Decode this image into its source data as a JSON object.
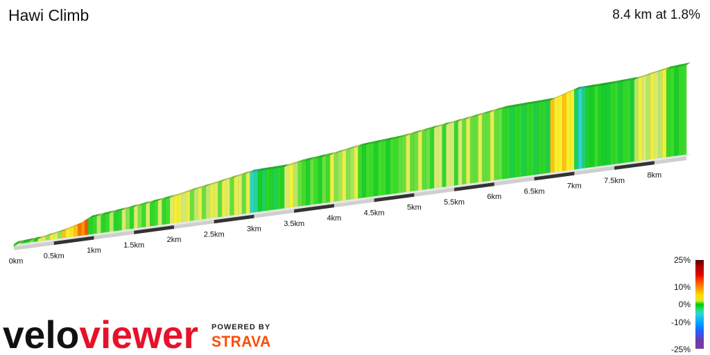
{
  "header": {
    "title": "Hawi Climb",
    "stats": "8.4 km at 1.8%"
  },
  "branding": {
    "logo_text": "veloviewer",
    "powered_by": "POWERED BY",
    "strava": "STRAVA",
    "logo_color": "#e8102a",
    "strava_color": "#fc4c02"
  },
  "legend": {
    "labels": [
      "25%",
      "10%",
      "0%",
      "-10%",
      "-25%"
    ]
  },
  "chart_data": {
    "type": "area",
    "title": "Hawi Climb",
    "subtitle": "8.4 km at 1.8%",
    "xlabel": "",
    "ylabel": "",
    "x_unit": "km",
    "xlim": [
      0,
      8.4
    ],
    "tick_labels": [
      "0km",
      "0.5km",
      "1km",
      "1.5km",
      "2km",
      "2.5km",
      "3km",
      "3.5km",
      "4km",
      "4.5km",
      "5km",
      "5.5km",
      "6km",
      "6.5km",
      "7km",
      "7.5km",
      "8km"
    ],
    "tick_values": [
      0,
      0.5,
      1,
      1.5,
      2,
      2.5,
      3,
      3.5,
      4,
      4.5,
      5,
      5.5,
      6,
      6.5,
      7,
      7.5,
      8
    ],
    "elevation_profile": [
      {
        "x": 0.0,
        "y": 0
      },
      {
        "x": 0.3,
        "y": 4
      },
      {
        "x": 0.6,
        "y": 14
      },
      {
        "x": 0.8,
        "y": 24
      },
      {
        "x": 0.93,
        "y": 36
      },
      {
        "x": 1.3,
        "y": 43
      },
      {
        "x": 1.6,
        "y": 50
      },
      {
        "x": 2.0,
        "y": 59
      },
      {
        "x": 2.15,
        "y": 65
      },
      {
        "x": 2.5,
        "y": 76
      },
      {
        "x": 2.95,
        "y": 91
      },
      {
        "x": 3.38,
        "y": 93
      },
      {
        "x": 3.55,
        "y": 99
      },
      {
        "x": 3.95,
        "y": 106
      },
      {
        "x": 4.3,
        "y": 117
      },
      {
        "x": 4.8,
        "y": 124
      },
      {
        "x": 5.2,
        "y": 135
      },
      {
        "x": 5.6,
        "y": 145
      },
      {
        "x": 6.1,
        "y": 159
      },
      {
        "x": 6.7,
        "y": 163
      },
      {
        "x": 7.0,
        "y": 180
      },
      {
        "x": 7.4,
        "y": 182
      },
      {
        "x": 7.75,
        "y": 185
      },
      {
        "x": 8.15,
        "y": 199
      },
      {
        "x": 8.4,
        "y": 202
      }
    ],
    "gradient_segments_pct": [
      {
        "from": 0.0,
        "to": 0.3,
        "grade": 1.5
      },
      {
        "from": 0.3,
        "to": 0.6,
        "grade": 3.5
      },
      {
        "from": 0.6,
        "to": 0.8,
        "grade": 5.5
      },
      {
        "from": 0.8,
        "to": 0.93,
        "grade": 9.0
      },
      {
        "from": 0.93,
        "to": 1.3,
        "grade": 1.8
      },
      {
        "from": 1.3,
        "to": 1.6,
        "grade": 2.3
      },
      {
        "from": 1.6,
        "to": 2.0,
        "grade": 2.2
      },
      {
        "from": 2.0,
        "to": 2.15,
        "grade": 4.0
      },
      {
        "from": 2.15,
        "to": 2.5,
        "grade": 3.1
      },
      {
        "from": 2.5,
        "to": 2.95,
        "grade": 3.3
      },
      {
        "from": 2.95,
        "to": 3.1,
        "grade": -1.0
      },
      {
        "from": 3.1,
        "to": 3.38,
        "grade": 0.5
      },
      {
        "from": 3.38,
        "to": 3.55,
        "grade": 3.5
      },
      {
        "from": 3.55,
        "to": 3.95,
        "grade": 1.6
      },
      {
        "from": 3.95,
        "to": 4.3,
        "grade": 3.1
      },
      {
        "from": 4.3,
        "to": 4.8,
        "grade": 1.4
      },
      {
        "from": 4.8,
        "to": 5.2,
        "grade": 2.8
      },
      {
        "from": 5.2,
        "to": 5.6,
        "grade": 2.5
      },
      {
        "from": 5.6,
        "to": 6.1,
        "grade": 2.8
      },
      {
        "from": 6.1,
        "to": 6.7,
        "grade": 0.7
      },
      {
        "from": 6.7,
        "to": 7.0,
        "grade": 5.5
      },
      {
        "from": 7.0,
        "to": 7.15,
        "grade": -1.2
      },
      {
        "from": 7.15,
        "to": 7.4,
        "grade": 0.8
      },
      {
        "from": 7.4,
        "to": 7.75,
        "grade": 0.9
      },
      {
        "from": 7.75,
        "to": 8.15,
        "grade": 3.5
      },
      {
        "from": 8.15,
        "to": 8.4,
        "grade": 1.2
      }
    ],
    "color_scale": {
      "labels": [
        "25%",
        "10%",
        "0%",
        "-10%",
        "-25%"
      ],
      "values": [
        25,
        10,
        0,
        -10,
        -25
      ]
    }
  }
}
